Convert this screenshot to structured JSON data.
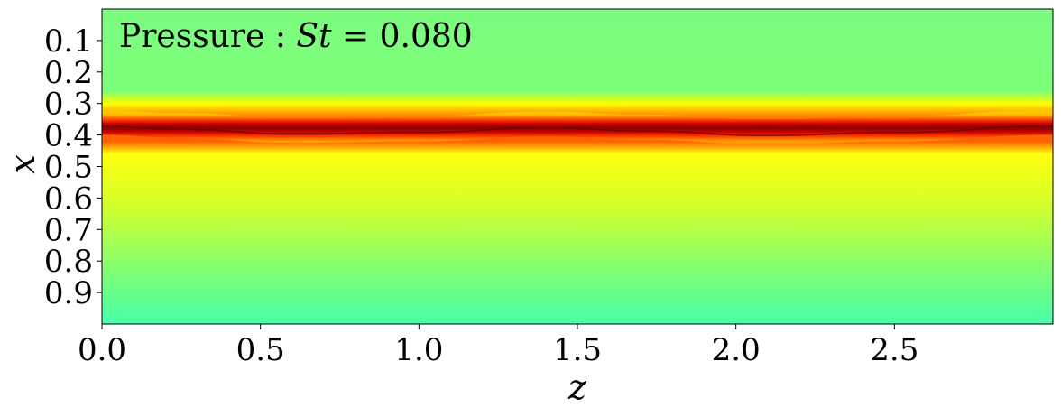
{
  "chart_data": {
    "type": "heatmap",
    "title_prefix": "Pressure : ",
    "title_var": "St",
    "title_value": " = 0.080",
    "xlabel": "z",
    "ylabel": "x",
    "xlim": [
      0.0,
      3.0
    ],
    "ylim": [
      0.0,
      1.0
    ],
    "y_inverted": true,
    "x_ticks": [
      0.0,
      0.5,
      1.0,
      1.5,
      2.0,
      2.5
    ],
    "x_tick_labels": [
      "0.0",
      "0.5",
      "1.0",
      "1.5",
      "2.0",
      "2.5"
    ],
    "y_ticks": [
      0.1,
      0.2,
      0.3,
      0.4,
      0.5,
      0.6,
      0.7,
      0.8,
      0.9
    ],
    "y_tick_labels": [
      "0.1",
      "0.2",
      "0.3",
      "0.4",
      "0.5",
      "0.6",
      "0.7",
      "0.8",
      "0.9"
    ],
    "colormap": "jet-like (green to yellow to red to dark red)",
    "feature": {
      "description": "high-pressure band",
      "band_center_x": [
        {
          "z": 0.0,
          "x": 0.36
        },
        {
          "z": 0.25,
          "x": 0.37
        },
        {
          "z": 0.6,
          "x": 0.385
        },
        {
          "z": 1.0,
          "x": 0.38
        },
        {
          "z": 1.4,
          "x": 0.365
        },
        {
          "z": 1.7,
          "x": 0.375
        },
        {
          "z": 2.1,
          "x": 0.39
        },
        {
          "z": 2.5,
          "x": 0.38
        },
        {
          "z": 3.0,
          "x": 0.36
        }
      ],
      "band_half_width_x": 0.04
    }
  }
}
